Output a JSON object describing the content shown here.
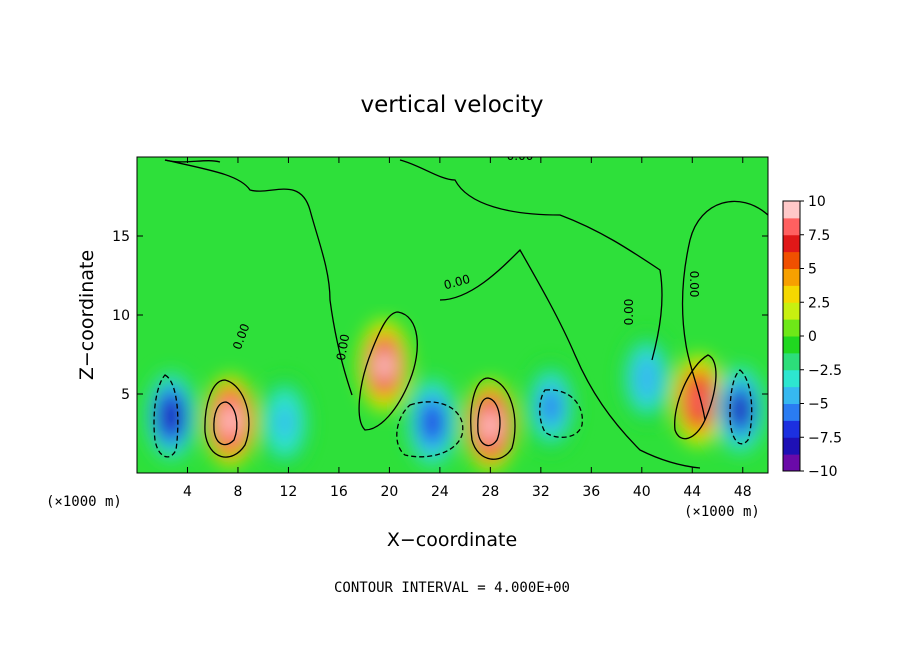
{
  "chart_data": {
    "type": "heatmap",
    "title": "vertical velocity",
    "xlabel": "X−coordinate",
    "ylabel": "Z−coordinate",
    "x_unit_left": "(×1000 m)",
    "x_unit_right": "(×1000 m)",
    "xlim": [
      0,
      50
    ],
    "ylim": [
      0,
      20
    ],
    "xticks": [
      4,
      8,
      12,
      16,
      20,
      24,
      28,
      32,
      36,
      40,
      44,
      48
    ],
    "yticks": [
      5,
      10,
      15
    ],
    "colorbar": {
      "ticks": [
        "10",
        "7.5",
        "5",
        "2.5",
        "0",
        "−2.5",
        "−5",
        "−7.5",
        "−10"
      ],
      "range": [
        -10,
        10
      ],
      "colors": [
        "#6a0aa8",
        "#1e10b5",
        "#1c30e0",
        "#2a7cf2",
        "#36b8f0",
        "#2de6d0",
        "#2cde7a",
        "#20d820",
        "#6ee818",
        "#c8f010",
        "#f5d800",
        "#f7a000",
        "#f05000",
        "#e01818",
        "#ff6060",
        "#ffc8c8"
      ]
    },
    "contour_interval_text": "CONTOUR INTERVAL = 4.000E+00",
    "contour_labels": [
      "0.00",
      "0.00",
      "0.00",
      "0.00",
      "0.00",
      "0.00"
    ],
    "features": [
      {
        "x": 2.7,
        "z": 3.6,
        "w": -8.5
      },
      {
        "x": 7.4,
        "z": 3.3,
        "w": 10.0
      },
      {
        "x": 11.7,
        "z": 3.2,
        "w": -4.5
      },
      {
        "x": 19.6,
        "z": 6.8,
        "w": 9.0
      },
      {
        "x": 23.4,
        "z": 3.2,
        "w": -7.5
      },
      {
        "x": 28.0,
        "z": 3.0,
        "w": 10.5
      },
      {
        "x": 32.8,
        "z": 4.2,
        "w": -5.5
      },
      {
        "x": 40.4,
        "z": 6.0,
        "w": -5.0
      },
      {
        "x": 44.5,
        "z": 4.6,
        "w": 8.5
      },
      {
        "x": 47.8,
        "z": 4.0,
        "w": -8.0
      }
    ]
  }
}
